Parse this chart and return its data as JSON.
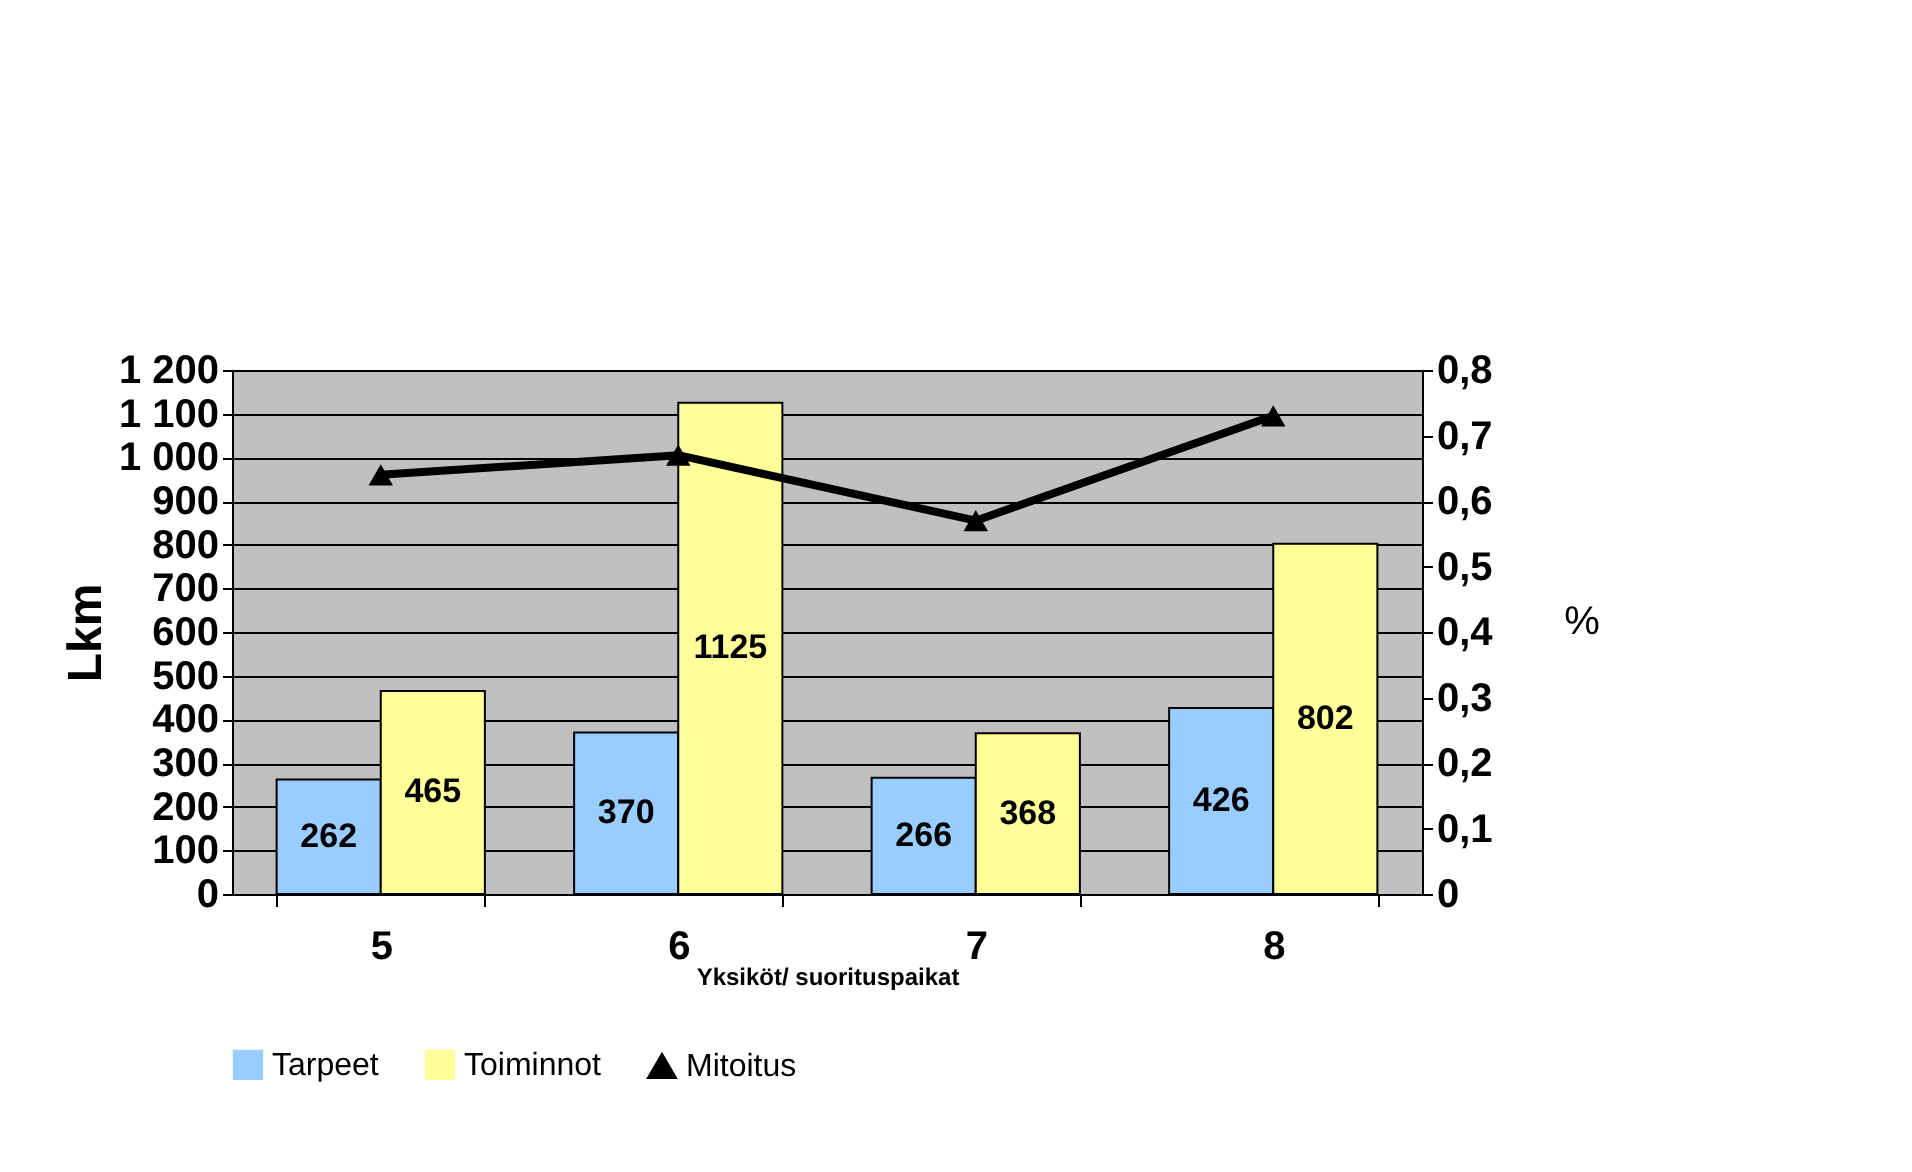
{
  "chart_data": {
    "type": "bar",
    "xlabel": "Yksiköt/ suorituspaikat",
    "ylabel": "Lkm",
    "y2label": "%",
    "categories": [
      "5",
      "6",
      "7",
      "8"
    ],
    "series": [
      {
        "name": "Tarpeet",
        "color": "#99ccff",
        "values": [
          262,
          370,
          266,
          426
        ],
        "value_labels": [
          "262",
          "370",
          "266",
          "426"
        ]
      },
      {
        "name": "Toiminnot",
        "color": "#ffff99",
        "values": [
          465,
          1125,
          368,
          802
        ],
        "value_labels": [
          "465",
          "1125",
          "368",
          "802"
        ]
      },
      {
        "name": "Mitoitus",
        "type": "line",
        "axis": "y2",
        "color": "#000000",
        "marker": "triangle",
        "values": [
          0.64,
          0.67,
          0.57,
          0.73
        ]
      }
    ],
    "ylim": [
      0,
      1200
    ],
    "yticks": [
      0,
      100,
      200,
      300,
      400,
      500,
      600,
      700,
      800,
      900,
      {
        "value": 1000,
        "label": "1 000"
      },
      {
        "value": 1100,
        "label": "1 100"
      },
      {
        "value": 1200,
        "label": "1 200"
      }
    ],
    "y2lim": [
      0,
      0.8
    ],
    "y2ticks": [
      0,
      {
        "value": 0.1,
        "label": "0,1"
      },
      {
        "value": 0.2,
        "label": "0,2"
      },
      {
        "value": 0.3,
        "label": "0,3"
      },
      {
        "value": 0.4,
        "label": "0,4"
      },
      {
        "value": 0.5,
        "label": "0,5"
      },
      {
        "value": 0.6,
        "label": "0,6"
      },
      {
        "value": 0.7,
        "label": "0,7"
      },
      {
        "value": 0.8,
        "label": "0,8"
      }
    ],
    "grid": "y",
    "legend": "bottom"
  }
}
